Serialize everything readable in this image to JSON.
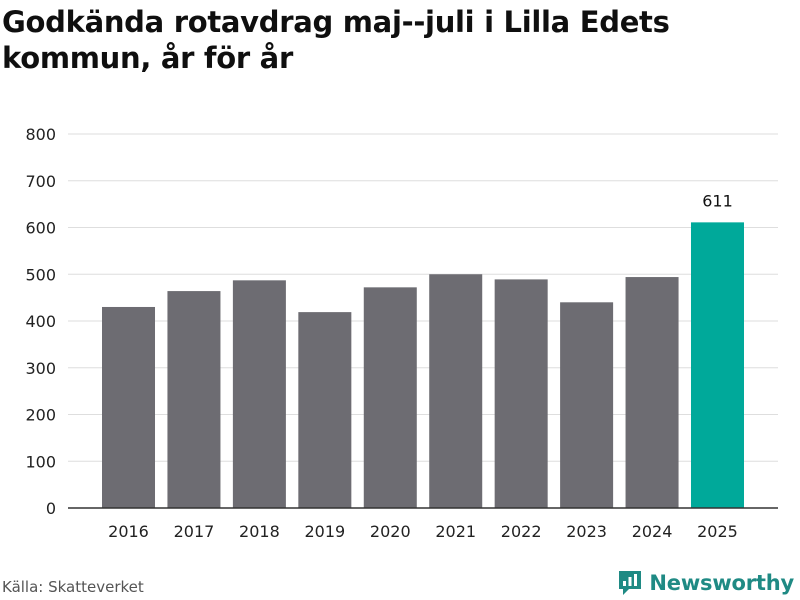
{
  "title": "Godkända rotavdrag maj--juli i Lilla Edets kommun, år för år",
  "source": "Källa: Skatteverket",
  "brand": {
    "name": "Newsworthy",
    "icon": "newsworthy-logo-icon",
    "color": "#1f8a84"
  },
  "colors": {
    "bar": "#6d6c72",
    "highlight": "#00a99a",
    "grid": "#dedede",
    "axis": "#333333"
  },
  "chart_data": {
    "type": "bar",
    "categories": [
      "2016",
      "2017",
      "2018",
      "2019",
      "2020",
      "2021",
      "2022",
      "2023",
      "2024",
      "2025"
    ],
    "values": [
      430,
      464,
      487,
      419,
      472,
      500,
      489,
      440,
      494,
      611
    ],
    "highlight_index": 9,
    "data_labels": [
      {
        "index": 9,
        "text": "611"
      }
    ],
    "ylim": [
      0,
      800
    ],
    "yticks": [
      0,
      100,
      200,
      300,
      400,
      500,
      600,
      700,
      800
    ],
    "xlabel": "",
    "ylabel": "",
    "grid": true,
    "legend": "none"
  }
}
